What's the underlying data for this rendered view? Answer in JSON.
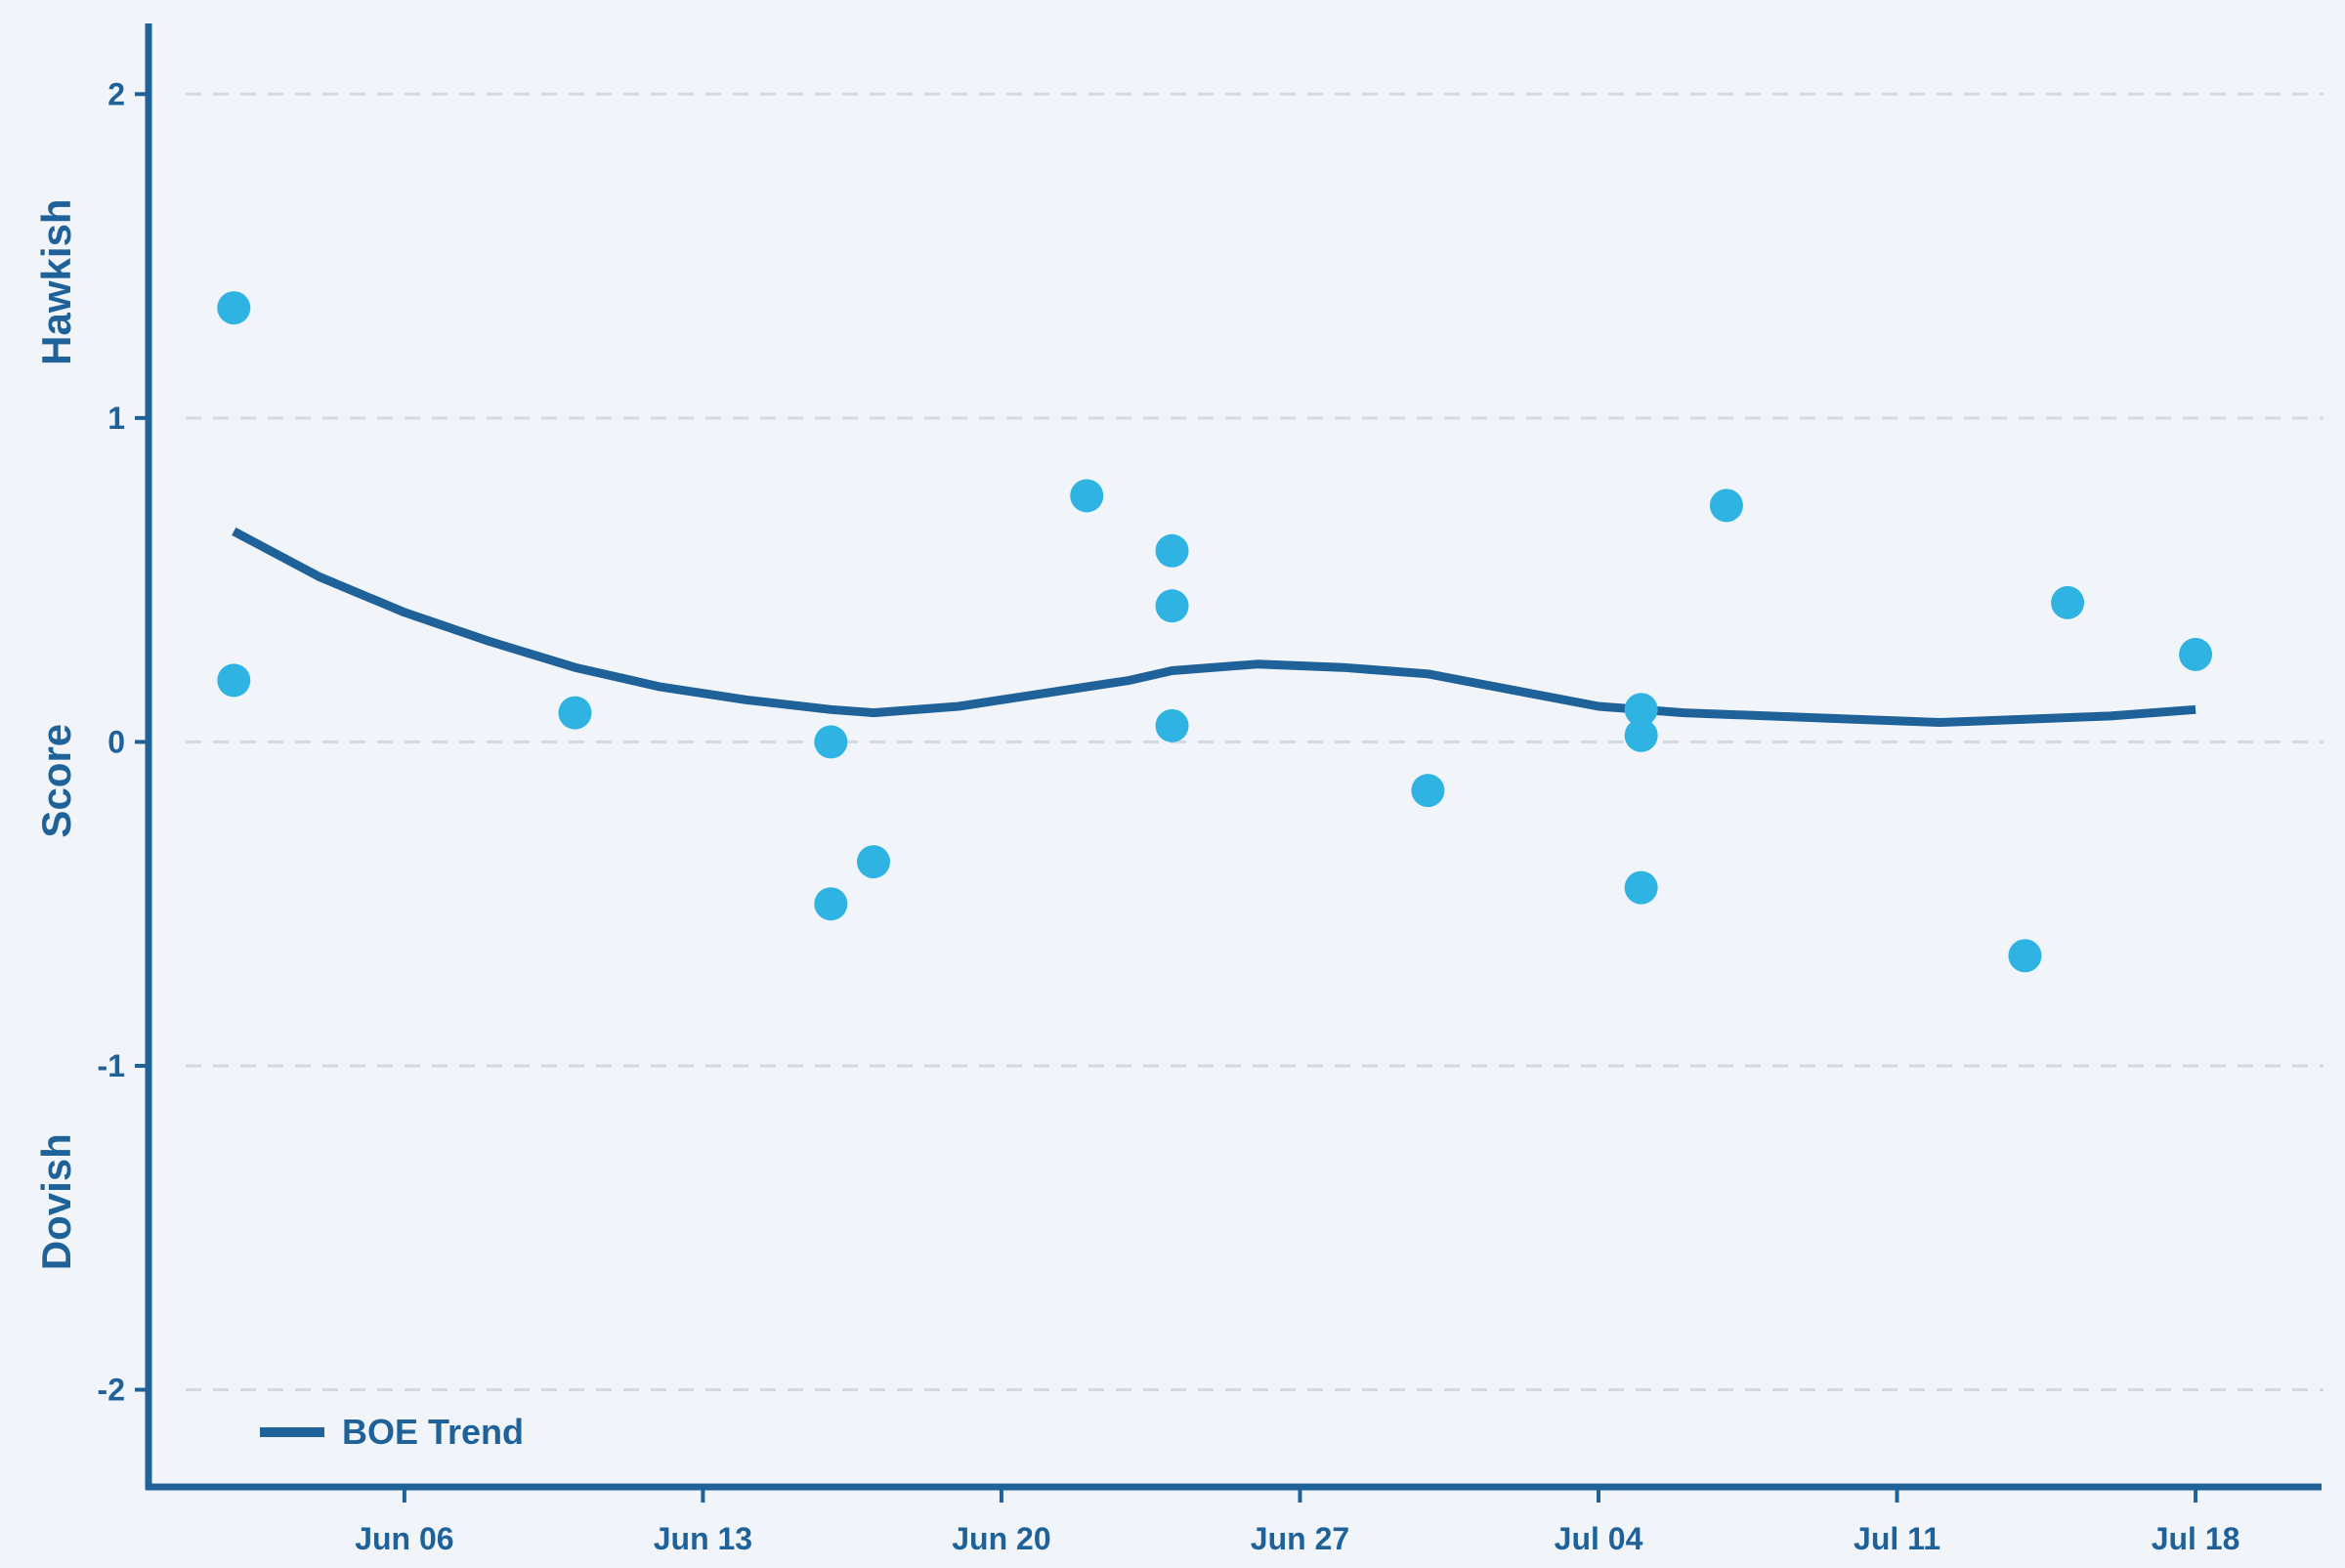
{
  "chart_data": {
    "type": "scatter",
    "title": "",
    "xlabel": "",
    "ylabel": "Score",
    "ylabel_top": "Hawkish",
    "ylabel_bottom": "Dovish",
    "ylim": [
      -2.3,
      2.2
    ],
    "xlim": [
      "2024-05-31",
      "2024-07-21"
    ],
    "grid": "horizontal-dashed",
    "legend_placement": "bottom-left",
    "x_ticks": [
      {
        "date": "2024-06-06",
        "label": "Jun 06"
      },
      {
        "date": "2024-06-13",
        "label": "Jun 13"
      },
      {
        "date": "2024-06-20",
        "label": "Jun 20"
      },
      {
        "date": "2024-06-27",
        "label": "Jun 27"
      },
      {
        "date": "2024-07-04",
        "label": "Jul 04"
      },
      {
        "date": "2024-07-11",
        "label": "Jul 11"
      },
      {
        "date": "2024-07-18",
        "label": "Jul 18"
      }
    ],
    "y_ticks": [
      {
        "value": 2,
        "label": "2"
      },
      {
        "value": 1,
        "label": "1"
      },
      {
        "value": 0,
        "label": "0"
      },
      {
        "value": -1,
        "label": "-1"
      },
      {
        "value": -2,
        "label": "-2"
      }
    ],
    "points": [
      {
        "x": "2024-06-02",
        "y": 1.34
      },
      {
        "x": "2024-06-02",
        "y": 0.19
      },
      {
        "x": "2024-06-10",
        "y": 0.09
      },
      {
        "x": "2024-06-16",
        "y": 0.0
      },
      {
        "x": "2024-06-16",
        "y": -0.5
      },
      {
        "x": "2024-06-17",
        "y": -0.37
      },
      {
        "x": "2024-06-22",
        "y": 0.76
      },
      {
        "x": "2024-06-24",
        "y": 0.59
      },
      {
        "x": "2024-06-24",
        "y": 0.42
      },
      {
        "x": "2024-06-24",
        "y": 0.05
      },
      {
        "x": "2024-06-30",
        "y": -0.15
      },
      {
        "x": "2024-07-05",
        "y": 0.1
      },
      {
        "x": "2024-07-05",
        "y": 0.02
      },
      {
        "x": "2024-07-05",
        "y": -0.45
      },
      {
        "x": "2024-07-07",
        "y": 0.73
      },
      {
        "x": "2024-07-14",
        "y": -0.66
      },
      {
        "x": "2024-07-15",
        "y": 0.43
      },
      {
        "x": "2024-07-18",
        "y": 0.27
      }
    ],
    "series": [
      {
        "name": "BOE Trend",
        "type": "line",
        "color": "#1f6199",
        "points": [
          {
            "x": "2024-06-02",
            "y": 0.65
          },
          {
            "x": "2024-06-04",
            "y": 0.51
          },
          {
            "x": "2024-06-06",
            "y": 0.4
          },
          {
            "x": "2024-06-08",
            "y": 0.31
          },
          {
            "x": "2024-06-10",
            "y": 0.23
          },
          {
            "x": "2024-06-12",
            "y": 0.17
          },
          {
            "x": "2024-06-14",
            "y": 0.13
          },
          {
            "x": "2024-06-16",
            "y": 0.1
          },
          {
            "x": "2024-06-17",
            "y": 0.09
          },
          {
            "x": "2024-06-19",
            "y": 0.11
          },
          {
            "x": "2024-06-21",
            "y": 0.15
          },
          {
            "x": "2024-06-23",
            "y": 0.19
          },
          {
            "x": "2024-06-24",
            "y": 0.22
          },
          {
            "x": "2024-06-26",
            "y": 0.24
          },
          {
            "x": "2024-06-28",
            "y": 0.23
          },
          {
            "x": "2024-06-30",
            "y": 0.21
          },
          {
            "x": "2024-07-02",
            "y": 0.16
          },
          {
            "x": "2024-07-04",
            "y": 0.11
          },
          {
            "x": "2024-07-06",
            "y": 0.09
          },
          {
            "x": "2024-07-08",
            "y": 0.08
          },
          {
            "x": "2024-07-10",
            "y": 0.07
          },
          {
            "x": "2024-07-12",
            "y": 0.06
          },
          {
            "x": "2024-07-14",
            "y": 0.07
          },
          {
            "x": "2024-07-16",
            "y": 0.08
          },
          {
            "x": "2024-07-18",
            "y": 0.1
          }
        ]
      }
    ],
    "colors": {
      "background": "#f1f5f9",
      "axis": "#1f6199",
      "trend": "#1f6199",
      "points": "#2fb3e3",
      "grid": "#d4d9de",
      "text": "#1f6199"
    }
  }
}
